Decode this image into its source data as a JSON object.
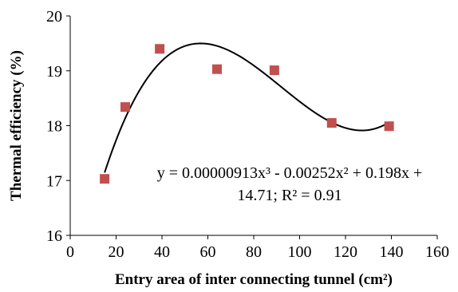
{
  "chart_data": {
    "type": "scatter",
    "xlabel": "Entry area of inter connecting tunnel (cm²)",
    "ylabel": "Thermal efficiency (%)",
    "xlim": [
      0,
      160
    ],
    "ylim": [
      16,
      20
    ],
    "x_ticks": [
      0,
      20,
      40,
      60,
      80,
      100,
      120,
      140,
      160
    ],
    "y_ticks": [
      16,
      17,
      18,
      19,
      20
    ],
    "x_tick_labels": [
      "0",
      "20",
      "40",
      "60",
      "80",
      "100",
      "120",
      "140",
      "160"
    ],
    "y_tick_labels": [
      "16",
      "17",
      "18",
      "19",
      "20"
    ],
    "grid": false,
    "series": [
      {
        "marker": "square",
        "color": "#c0504d",
        "x": [
          15,
          24,
          39,
          64,
          89,
          114,
          139
        ],
        "y": [
          17.03,
          18.34,
          19.4,
          19.03,
          19.01,
          18.05,
          17.99
        ]
      }
    ],
    "trendline": {
      "type": "polynomial",
      "order": 3,
      "color": "#000000",
      "coefficients": {
        "a3": 9.13e-06,
        "a2": -0.00252,
        "a1": 0.198,
        "a0": 14.71
      },
      "x_range": [
        15,
        139
      ]
    },
    "annotation": {
      "line1": "y = 0.00000913x³ - 0.00252x² + 0.198x +",
      "line2": "14.71;   R² = 0.91"
    }
  }
}
